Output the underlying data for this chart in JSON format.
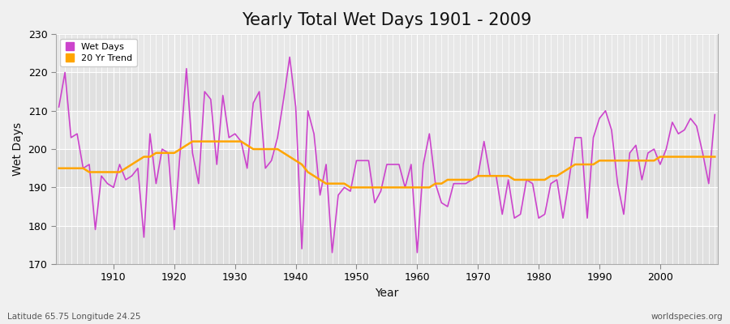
{
  "title": "Yearly Total Wet Days 1901 - 2009",
  "xlabel": "Year",
  "ylabel": "Wet Days",
  "subtitle": "Latitude 65.75 Longitude 24.25",
  "watermark": "worldspecies.org",
  "years": [
    1901,
    1902,
    1903,
    1904,
    1905,
    1906,
    1907,
    1908,
    1909,
    1910,
    1911,
    1912,
    1913,
    1914,
    1915,
    1916,
    1917,
    1918,
    1919,
    1920,
    1921,
    1922,
    1923,
    1924,
    1925,
    1926,
    1927,
    1928,
    1929,
    1930,
    1931,
    1932,
    1933,
    1934,
    1935,
    1936,
    1937,
    1938,
    1939,
    1940,
    1941,
    1942,
    1943,
    1944,
    1945,
    1946,
    1947,
    1948,
    1949,
    1950,
    1951,
    1952,
    1953,
    1954,
    1955,
    1956,
    1957,
    1958,
    1959,
    1960,
    1961,
    1962,
    1963,
    1964,
    1965,
    1966,
    1967,
    1968,
    1969,
    1970,
    1971,
    1972,
    1973,
    1974,
    1975,
    1976,
    1977,
    1978,
    1979,
    1980,
    1981,
    1982,
    1983,
    1984,
    1985,
    1986,
    1987,
    1988,
    1989,
    1990,
    1991,
    1992,
    1993,
    1994,
    1995,
    1996,
    1997,
    1998,
    1999,
    2000,
    2001,
    2002,
    2003,
    2004,
    2005,
    2006,
    2007,
    2008,
    2009
  ],
  "wet_days": [
    211,
    220,
    203,
    204,
    195,
    196,
    179,
    193,
    191,
    190,
    196,
    192,
    193,
    195,
    177,
    204,
    191,
    200,
    199,
    179,
    200,
    221,
    199,
    191,
    215,
    213,
    196,
    214,
    203,
    204,
    202,
    195,
    212,
    215,
    195,
    197,
    203,
    213,
    224,
    211,
    174,
    210,
    204,
    188,
    196,
    173,
    188,
    190,
    189,
    197,
    197,
    197,
    186,
    189,
    196,
    196,
    196,
    190,
    196,
    173,
    196,
    204,
    191,
    186,
    185,
    191,
    191,
    191,
    192,
    193,
    202,
    193,
    193,
    183,
    192,
    182,
    183,
    192,
    191,
    182,
    183,
    191,
    192,
    182,
    192,
    203,
    203,
    182,
    203,
    208,
    210,
    205,
    191,
    183,
    199,
    201,
    192,
    199,
    200,
    196,
    200,
    207,
    204,
    205,
    208,
    206,
    199,
    191,
    209
  ],
  "trend": [
    195,
    195,
    195,
    195,
    195,
    194,
    194,
    194,
    194,
    194,
    194,
    195,
    196,
    197,
    198,
    198,
    199,
    199,
    199,
    199,
    200,
    201,
    202,
    202,
    202,
    202,
    202,
    202,
    202,
    202,
    202,
    201,
    200,
    200,
    200,
    200,
    200,
    199,
    198,
    197,
    196,
    194,
    193,
    192,
    191,
    191,
    191,
    191,
    190,
    190,
    190,
    190,
    190,
    190,
    190,
    190,
    190,
    190,
    190,
    190,
    190,
    190,
    191,
    191,
    192,
    192,
    192,
    192,
    192,
    193,
    193,
    193,
    193,
    193,
    193,
    192,
    192,
    192,
    192,
    192,
    192,
    193,
    193,
    194,
    195,
    196,
    196,
    196,
    196,
    197,
    197,
    197,
    197,
    197,
    197,
    197,
    197,
    197,
    197,
    198,
    198,
    198,
    198,
    198,
    198,
    198,
    198,
    198,
    198
  ],
  "wet_days_color": "#cc44cc",
  "trend_color": "#ffa500",
  "bg_color": "#f0f0f0",
  "plot_bg_color": "#e8e8e8",
  "grid_color": "#ffffff",
  "ylim": [
    170,
    230
  ],
  "xlim_min": 1901,
  "xlim_max": 2009,
  "title_fontsize": 15,
  "label_fontsize": 10,
  "tick_fontsize": 9
}
